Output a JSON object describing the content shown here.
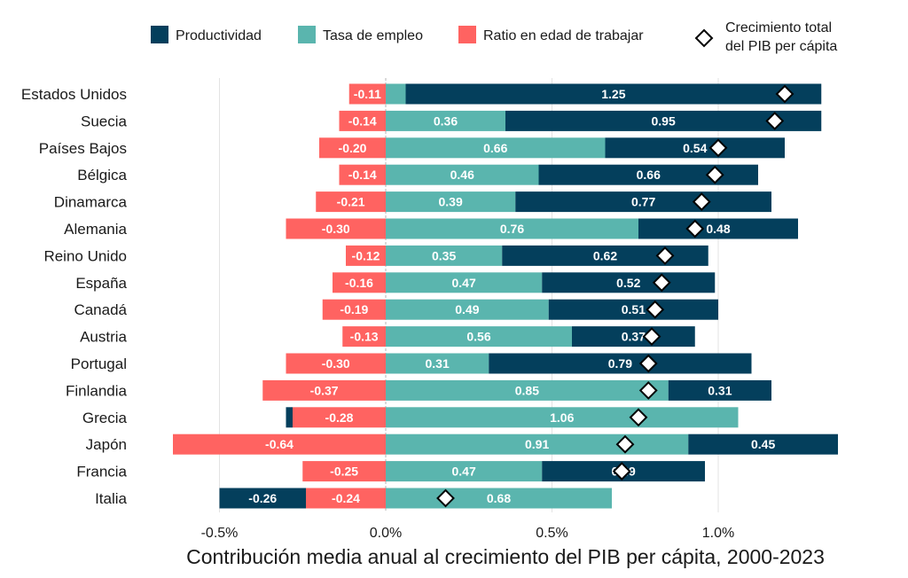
{
  "chart_data": {
    "type": "bar",
    "orientation": "horizontal",
    "stacked": true,
    "title": "",
    "xlabel": "Contribución media anual al crecimiento del PIB per cápita, 2000-2023",
    "ylabel": "",
    "xlim": [
      -0.5,
      1.37
    ],
    "xticks": [
      {
        "value": -0.5,
        "label": "-0.5%"
      },
      {
        "value": 0.0,
        "label": "0.0%"
      },
      {
        "value": 0.5,
        "label": "0.5%"
      },
      {
        "value": 1.0,
        "label": "1.0%"
      }
    ],
    "grid": "vertical",
    "legend_position": "top",
    "categories": [
      "Estados Unidos",
      "Suecia",
      "Países Bajos",
      "Bélgica",
      "Dinamarca",
      "Alemania",
      "Reino Unido",
      "España",
      "Canadá",
      "Austria",
      "Portugal",
      "Finlandia",
      "Grecia",
      "Japón",
      "Francia",
      "Italia"
    ],
    "series": [
      {
        "name": "Productividad",
        "key": "productividad",
        "color": "#043f5c",
        "values": [
          1.25,
          0.95,
          0.54,
          0.66,
          0.77,
          0.48,
          0.62,
          0.52,
          0.51,
          0.37,
          0.79,
          0.31,
          -0.02,
          0.45,
          0.49,
          -0.26
        ],
        "labels": [
          "1.25",
          "0.95",
          "0.54",
          "0.66",
          "0.77",
          "0.48",
          "0.62",
          "0.52",
          "0.51",
          "0.37",
          "0.79",
          "0.31",
          "",
          "0.45",
          "0.49",
          "-0.26"
        ]
      },
      {
        "name": "Tasa de empleo",
        "key": "empleo",
        "color": "#5ab5ae",
        "values": [
          0.06,
          0.36,
          0.66,
          0.46,
          0.39,
          0.76,
          0.35,
          0.47,
          0.49,
          0.56,
          0.31,
          0.85,
          1.06,
          0.91,
          0.47,
          0.68
        ],
        "labels": [
          "",
          "0.36",
          "0.66",
          "0.46",
          "0.39",
          "0.76",
          "0.35",
          "0.47",
          "0.49",
          "0.56",
          "0.31",
          "0.85",
          "1.06",
          "0.91",
          "0.47",
          "0.68"
        ]
      },
      {
        "name": "Ratio en edad de trabajar",
        "key": "ratio",
        "color": "#ff6361",
        "values": [
          -0.11,
          -0.14,
          -0.2,
          -0.14,
          -0.21,
          -0.3,
          -0.12,
          -0.16,
          -0.19,
          -0.13,
          -0.3,
          -0.37,
          -0.28,
          -0.64,
          -0.25,
          -0.24
        ],
        "labels": [
          "-0.11",
          "-0.14",
          "-0.20",
          "-0.14",
          "-0.21",
          "-0.30",
          "-0.12",
          "-0.16",
          "-0.19",
          "-0.13",
          "-0.30",
          "-0.37",
          "-0.28",
          "-0.64",
          "-0.25",
          "-0.24"
        ]
      }
    ],
    "total": {
      "name": "Crecimiento total del PIB per cápita",
      "marker": "diamond",
      "values": [
        1.2,
        1.17,
        1.0,
        0.99,
        0.95,
        0.93,
        0.84,
        0.83,
        0.81,
        0.8,
        0.79,
        0.79,
        0.76,
        0.72,
        0.71,
        0.18
      ]
    },
    "legend": [
      {
        "label": "Productividad",
        "color": "#043f5c",
        "marker": "square"
      },
      {
        "label": "Tasa de empleo",
        "color": "#5ab5ae",
        "marker": "square"
      },
      {
        "label": "Ratio en edad de trabajar",
        "color": "#ff6361",
        "marker": "square"
      },
      {
        "label_lines": [
          "Crecimiento total",
          "del PIB per cápita"
        ],
        "marker": "diamond"
      }
    ]
  }
}
